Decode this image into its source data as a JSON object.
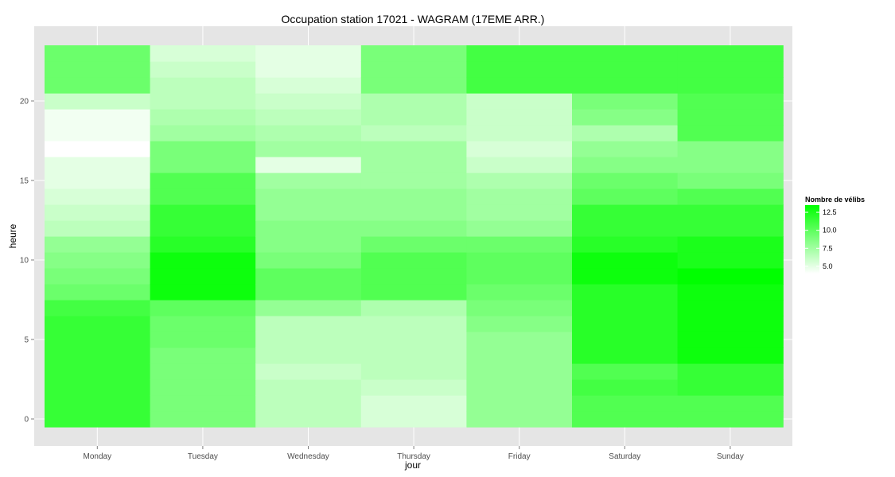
{
  "chart_data": {
    "type": "heatmap",
    "title": "Occupation station 17021 - WAGRAM (17EME ARR.)",
    "xlabel": "jour",
    "ylabel": "heure",
    "x_categories": [
      "Monday",
      "Tuesday",
      "Wednesday",
      "Thursday",
      "Friday",
      "Saturday",
      "Sunday"
    ],
    "y_range": [
      0,
      23
    ],
    "y_ticks": [
      0,
      5,
      10,
      15,
      20
    ],
    "grid": true,
    "legend": {
      "title": "Nombre de vélibs",
      "position": "right",
      "ticks": [
        5.0,
        7.5,
        10.0,
        12.5
      ],
      "tick_labels": [
        "5.0",
        "7.5",
        "10.0",
        "12.5"
      ],
      "range": [
        4,
        13.5
      ],
      "low_color": "#ffffff",
      "high_color": "#00ff00"
    },
    "values": [
      [
        11.5,
        11.5,
        11.5,
        11.5,
        11.5,
        11.5,
        11.5,
        11.0,
        9.5,
        9.0,
        8.5,
        8.0,
        6.5,
        6.0,
        5.5,
        5.0,
        5.0,
        4.0,
        4.5,
        4.5,
        6.0,
        9.5,
        9.5,
        9.5
      ],
      [
        9.0,
        9.0,
        9.0,
        9.0,
        9.0,
        9.5,
        9.5,
        10.0,
        13.0,
        13.0,
        13.0,
        12.0,
        11.5,
        11.5,
        10.5,
        10.5,
        9.0,
        9.0,
        7.5,
        7.0,
        6.5,
        6.5,
        6.0,
        5.5
      ],
      [
        6.5,
        6.5,
        6.5,
        6.0,
        6.5,
        6.5,
        6.5,
        8.0,
        10.0,
        10.0,
        9.0,
        8.5,
        8.5,
        8.0,
        8.0,
        7.5,
        5.0,
        7.5,
        7.0,
        6.5,
        6.0,
        5.5,
        5.0,
        5.0
      ],
      [
        5.5,
        5.5,
        6.0,
        6.5,
        6.5,
        6.5,
        6.5,
        7.0,
        10.5,
        10.5,
        10.5,
        9.5,
        8.5,
        8.0,
        8.0,
        7.5,
        7.5,
        7.5,
        6.5,
        7.0,
        7.0,
        9.0,
        9.0,
        9.0
      ],
      [
        8.0,
        8.0,
        8.0,
        8.0,
        8.0,
        8.0,
        8.5,
        9.0,
        9.5,
        10.0,
        10.0,
        9.5,
        8.0,
        7.5,
        7.5,
        7.0,
        6.0,
        5.5,
        6.0,
        6.0,
        6.0,
        11.0,
        11.0,
        11.0
      ],
      [
        10.5,
        10.5,
        11.0,
        10.5,
        12.0,
        12.0,
        12.0,
        12.0,
        12.0,
        13.0,
        13.0,
        12.0,
        11.5,
        11.5,
        10.0,
        9.5,
        8.5,
        8.0,
        7.0,
        8.5,
        9.0,
        11.0,
        11.0,
        11.0
      ],
      [
        10.5,
        10.5,
        11.5,
        11.5,
        13.0,
        13.0,
        13.0,
        13.0,
        13.0,
        13.5,
        12.5,
        12.5,
        11.5,
        11.5,
        10.5,
        9.0,
        8.5,
        8.5,
        10.5,
        10.5,
        10.5,
        11.0,
        11.0,
        11.0
      ]
    ]
  }
}
